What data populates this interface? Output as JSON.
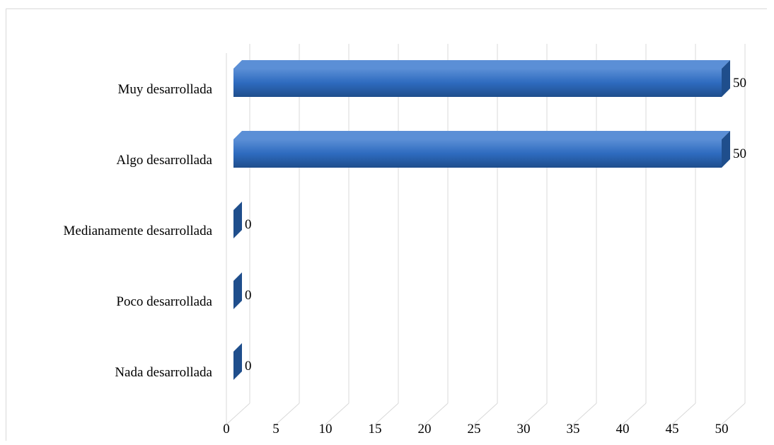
{
  "chart_data": {
    "type": "bar",
    "orientation": "horizontal",
    "style": "3d",
    "title": "",
    "xlabel": "",
    "ylabel": "",
    "categories": [
      "Muy desarrollada",
      "Algo desarrollada",
      "Medianamente desarrollada",
      "Poco desarrollada",
      "Nada desarrollada"
    ],
    "values": [
      50,
      50,
      0,
      0,
      0
    ],
    "data_labels": [
      "50",
      "50",
      "0",
      "0",
      "0"
    ],
    "xlim": [
      0,
      50
    ],
    "x_ticks": [
      "0",
      "5",
      "10",
      "15",
      "20",
      "25",
      "30",
      "35",
      "40",
      "45",
      "50"
    ],
    "grid": true,
    "legend": "none",
    "bar_color": "#2e6bbf",
    "bar_top_color": "#5b8fd6",
    "bar_dark_color": "#1f4e8c"
  }
}
